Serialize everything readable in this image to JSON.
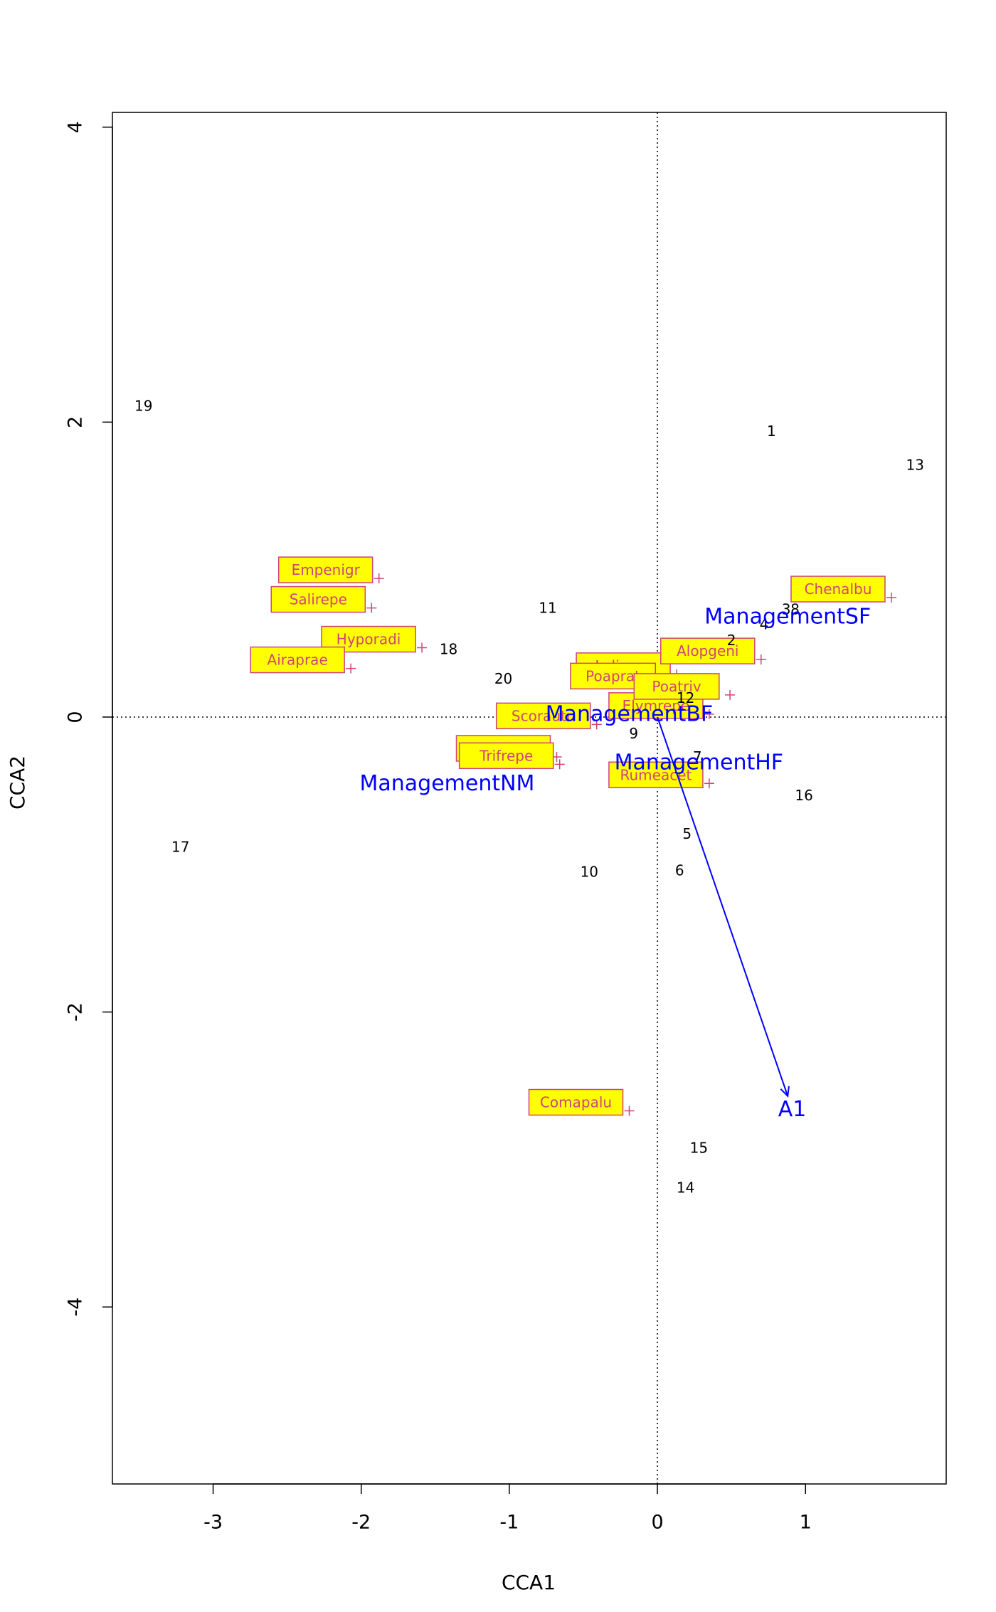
{
  "chart_data": {
    "type": "scatter",
    "title": "",
    "xlabel": "CCA1",
    "ylabel": "CCA2",
    "xlim": [
      -3.68,
      1.95
    ],
    "ylim": [
      -5.2,
      4.1
    ],
    "x_ticks": [
      -3,
      -2,
      -1,
      0,
      1
    ],
    "x_tick_labels": [
      "-3",
      "-2",
      "-1",
      "0",
      "1"
    ],
    "y_ticks": [
      -4,
      -2,
      0,
      2,
      4
    ],
    "y_tick_labels": [
      "-4",
      "-2",
      "0",
      "2",
      "4"
    ],
    "reference_lines": {
      "x": 0,
      "y": 0,
      "style": "dotted"
    },
    "sites": [
      {
        "label": "1",
        "x": 0.77,
        "y": 1.94
      },
      {
        "label": "2",
        "x": 0.5,
        "y": 0.52
      },
      {
        "label": "3",
        "x": 0.87,
        "y": 0.73
      },
      {
        "label": "4",
        "x": 0.72,
        "y": 0.63
      },
      {
        "label": "5",
        "x": 0.2,
        "y": -0.79
      },
      {
        "label": "6",
        "x": 0.15,
        "y": -1.04
      },
      {
        "label": "7",
        "x": 0.27,
        "y": -0.27
      },
      {
        "label": "8",
        "x": 0.93,
        "y": 0.73
      },
      {
        "label": "9",
        "x": -0.16,
        "y": -0.11
      },
      {
        "label": "10",
        "x": -0.46,
        "y": -1.05
      },
      {
        "label": "11",
        "x": -0.74,
        "y": 0.74
      },
      {
        "label": "12",
        "x": 0.19,
        "y": 0.13
      },
      {
        "label": "13",
        "x": 1.74,
        "y": 1.71
      },
      {
        "label": "14",
        "x": 0.19,
        "y": -3.19
      },
      {
        "label": "15",
        "x": 0.28,
        "y": -2.92
      },
      {
        "label": "16",
        "x": 0.99,
        "y": -0.53
      },
      {
        "label": "17",
        "x": -3.22,
        "y": -0.88
      },
      {
        "label": "18",
        "x": -1.41,
        "y": 0.46
      },
      {
        "label": "19",
        "x": -3.47,
        "y": 2.11
      },
      {
        "label": "20",
        "x": -1.04,
        "y": 0.26
      }
    ],
    "species": [
      {
        "label": "Empenigr",
        "x": -1.88,
        "y": 0.94
      },
      {
        "label": "Salirepe",
        "x": -1.93,
        "y": 0.74
      },
      {
        "label": "Hyporadi",
        "x": -1.59,
        "y": 0.47
      },
      {
        "label": "Airaprae",
        "x": -2.07,
        "y": 0.33
      },
      {
        "label": "Lolipere",
        "x": 0.13,
        "y": 0.29
      },
      {
        "label": "Poaprat",
        "x": 0.06,
        "y": 0.22
      },
      {
        "label": "Elymrepe",
        "x": 0.35,
        "y": 0.02
      },
      {
        "label": "Scorautu",
        "x": -0.41,
        "y": -0.05
      },
      {
        "label": "Anthodor",
        "x": -0.68,
        "y": -0.27
      },
      {
        "label": "Trifrepe",
        "x": -0.66,
        "y": -0.32
      },
      {
        "label": "Rumeacet",
        "x": 0.35,
        "y": -0.45
      },
      {
        "label": "Poatriv",
        "x": 0.49,
        "y": 0.15
      },
      {
        "label": "Alopgeni",
        "x": 0.7,
        "y": 0.39
      },
      {
        "label": "Chenalbu",
        "x": 1.58,
        "y": 0.81
      },
      {
        "label": "Comapalu",
        "x": -0.19,
        "y": -2.67
      }
    ],
    "centroids": [
      {
        "label": "ManagementSF",
        "x": 0.88,
        "y": 0.68
      },
      {
        "label": "ManagementBF",
        "x": -0.19,
        "y": 0.02
      },
      {
        "label": "ManagementHF",
        "x": 0.28,
        "y": -0.31
      },
      {
        "label": "ManagementNM",
        "x": -1.42,
        "y": -0.45
      }
    ],
    "biplot_arrows": [
      {
        "label": "A1",
        "x_start": 0,
        "y_start": 0,
        "x": 0.88,
        "y": -2.57,
        "label_x": 0.91,
        "label_y": -2.66
      }
    ],
    "colors": {
      "site_text": "#000000",
      "species_text": "#d0437a",
      "species_box_fill": "#ffff00",
      "species_box_border": "#d0437a",
      "species_marker": "#d0437a",
      "centroid_text": "#0000ff",
      "arrow": "#0000ff",
      "axis": "#000000"
    }
  }
}
